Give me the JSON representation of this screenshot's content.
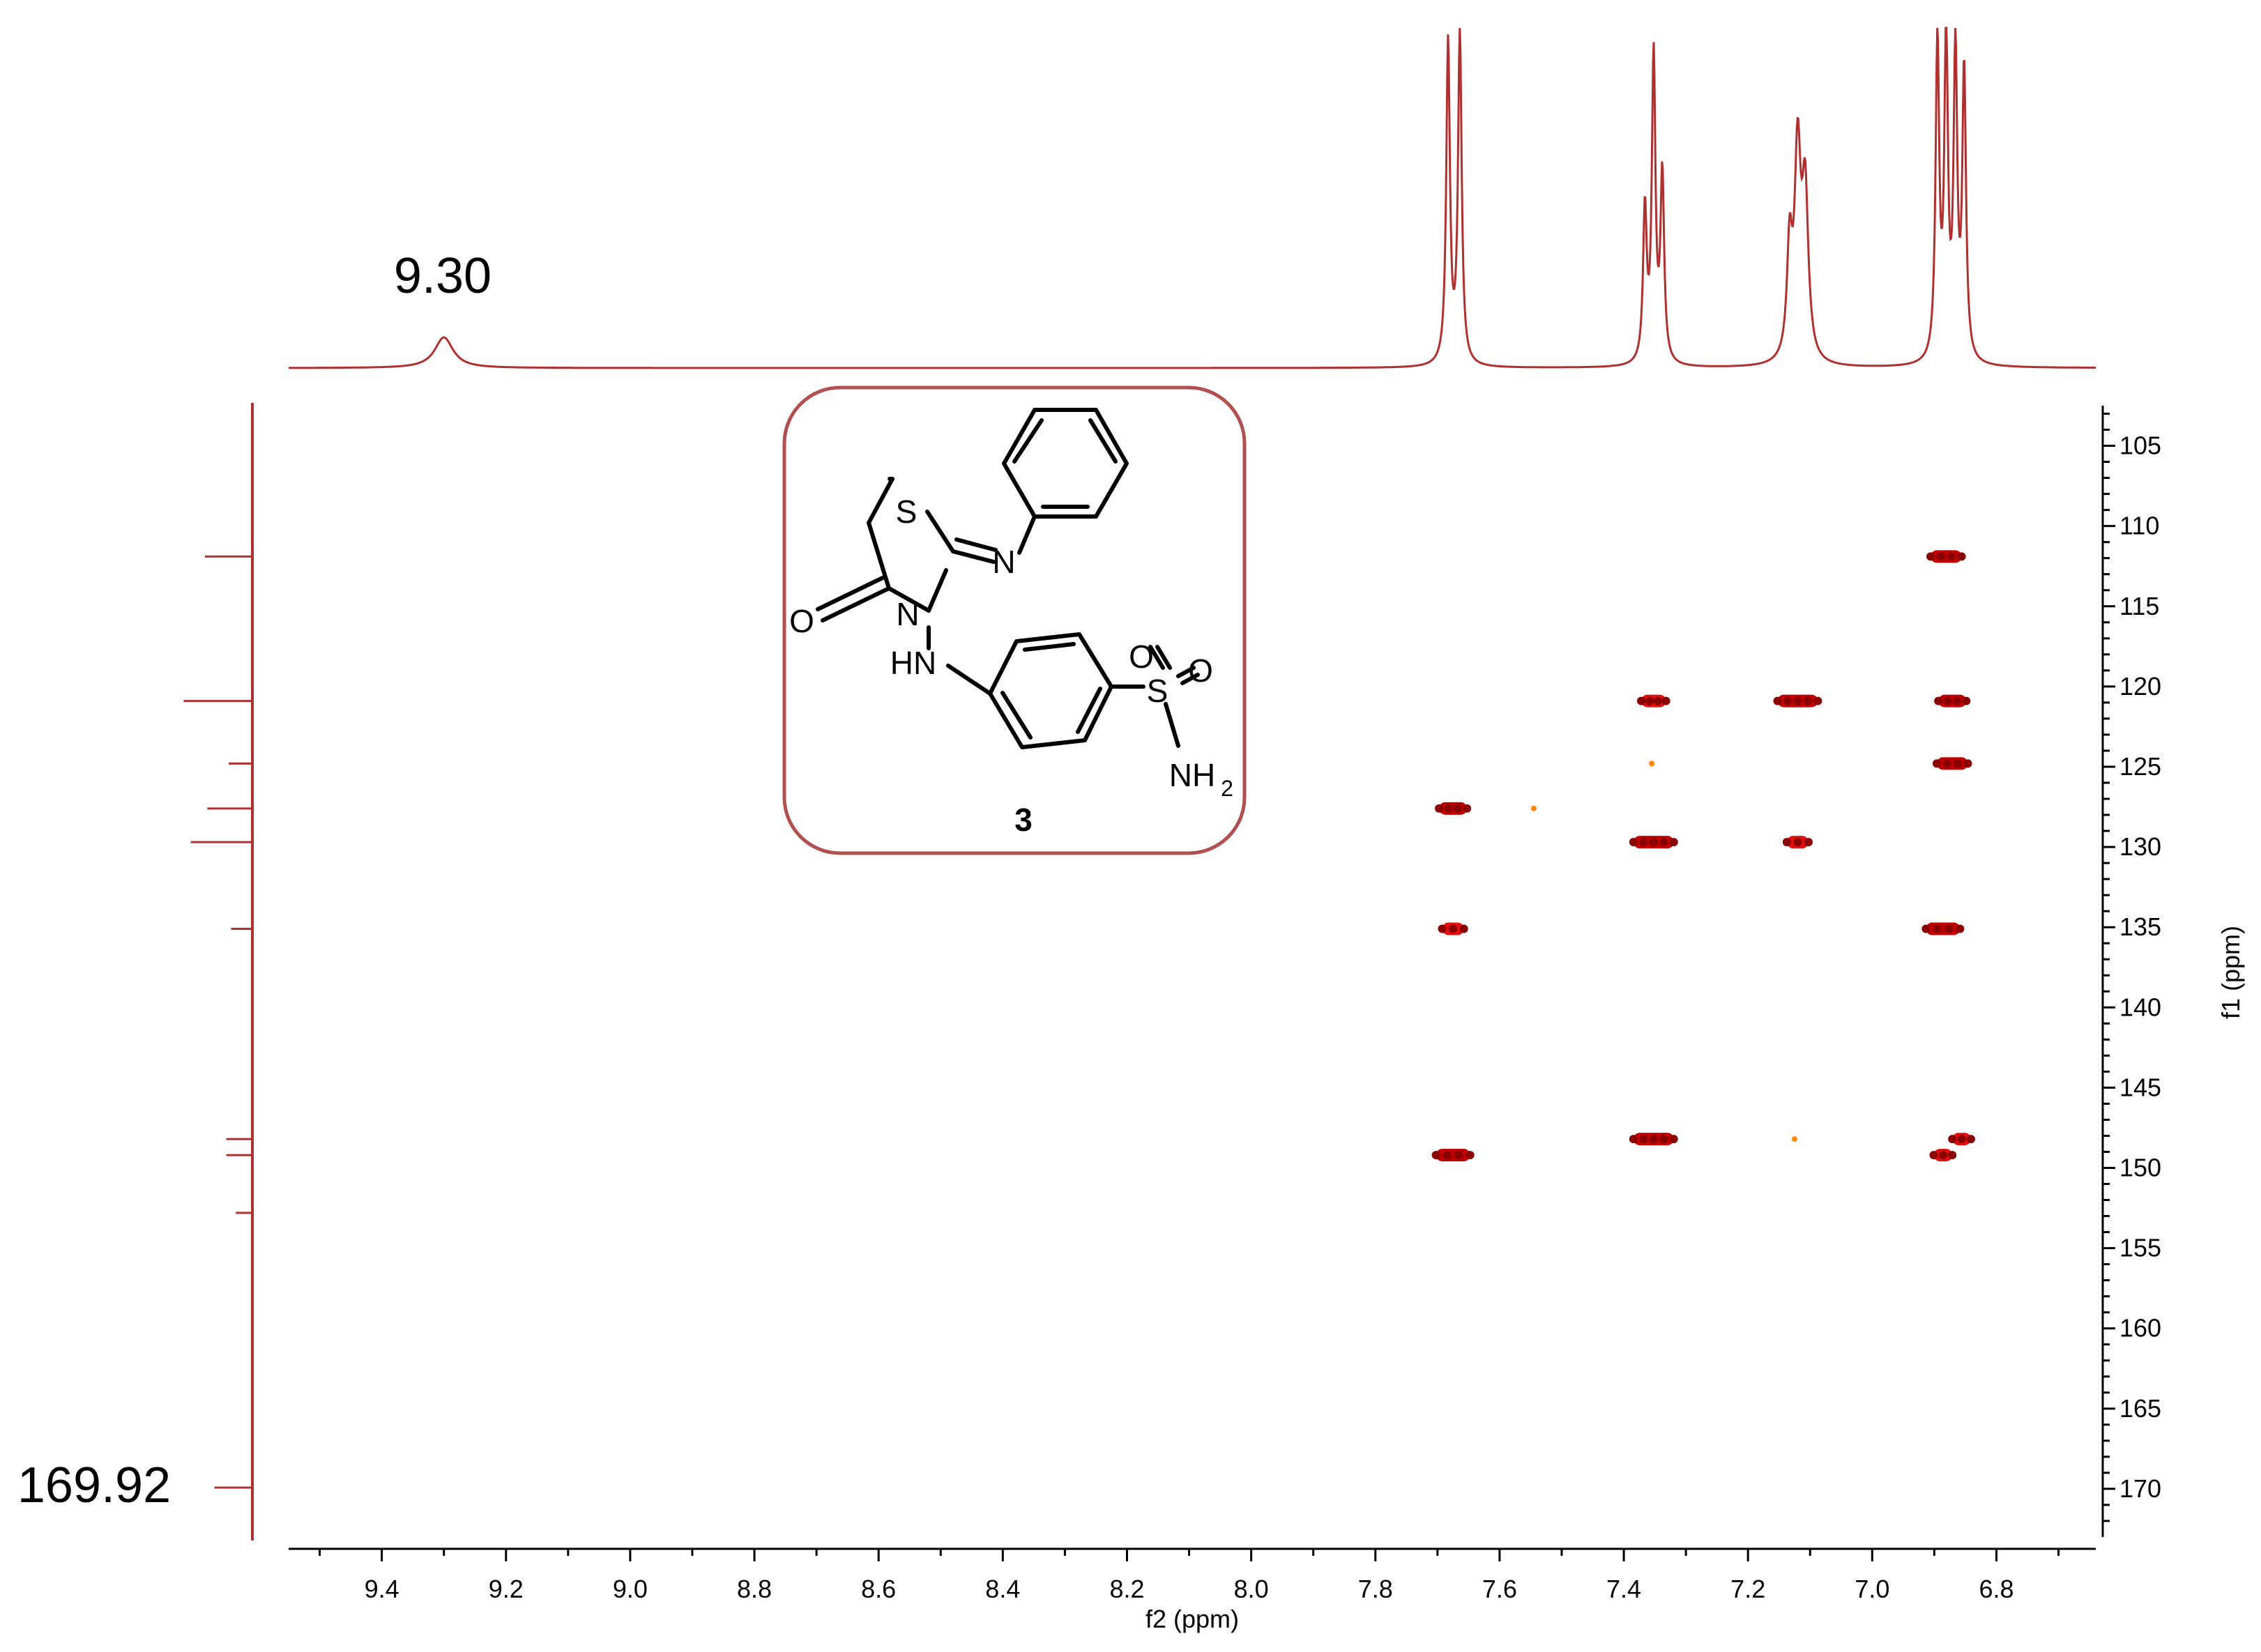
{
  "chart_data": {
    "type": "scatter",
    "subtype": "2D NMR (HMBC) contour plot with 1D projections",
    "xlabel": "f2 (ppm)",
    "ylabel": "f1 (ppm)",
    "xlim": [
      9.55,
      6.64
    ],
    "ylim": [
      102.5,
      173
    ],
    "x_ticks": [
      "9.4",
      "9.2",
      "9.0",
      "8.8",
      "8.6",
      "8.4",
      "8.2",
      "8.0",
      "7.8",
      "7.6",
      "7.4",
      "7.2",
      "7.0",
      "6.8"
    ],
    "y_ticks": [
      "105",
      "110",
      "115",
      "120",
      "125",
      "130",
      "135",
      "140",
      "145",
      "150",
      "155",
      "160",
      "165",
      "170"
    ],
    "top_projection": {
      "annotation": "9.30",
      "peaks": [
        {
          "x": 9.3,
          "h": 0.09,
          "w": 0.018
        },
        {
          "x": 7.683,
          "h": 0.95,
          "w": 0.0035
        },
        {
          "x": 7.664,
          "h": 0.98,
          "w": 0.0035
        },
        {
          "x": 7.366,
          "h": 0.45,
          "w": 0.0035
        },
        {
          "x": 7.352,
          "h": 0.9,
          "w": 0.0035
        },
        {
          "x": 7.338,
          "h": 0.55,
          "w": 0.0035
        },
        {
          "x": 7.133,
          "h": 0.32,
          "w": 0.005
        },
        {
          "x": 7.12,
          "h": 0.6,
          "w": 0.006
        },
        {
          "x": 7.108,
          "h": 0.48,
          "w": 0.006
        },
        {
          "x": 6.895,
          "h": 0.94,
          "w": 0.0035
        },
        {
          "x": 6.881,
          "h": 0.94,
          "w": 0.0035
        },
        {
          "x": 6.866,
          "h": 0.9,
          "w": 0.0035
        },
        {
          "x": 6.852,
          "h": 0.85,
          "w": 0.0035
        }
      ]
    },
    "left_projection": {
      "annotation": "169.92",
      "lines": [
        {
          "y": 111.9,
          "len": 1.0
        },
        {
          "y": 120.9,
          "len": 1.45
        },
        {
          "y": 124.8,
          "len": 0.5
        },
        {
          "y": 127.6,
          "len": 0.95
        },
        {
          "y": 129.7,
          "len": 1.3
        },
        {
          "y": 135.1,
          "len": 0.45
        },
        {
          "y": 148.2,
          "len": 0.55
        },
        {
          "y": 149.2,
          "len": 0.55
        },
        {
          "y": 152.8,
          "len": 0.35
        },
        {
          "y": 169.92,
          "len": 0.8
        }
      ]
    },
    "cross_peaks": [
      {
        "x": 6.881,
        "y": 111.9,
        "intensity": "strong",
        "width": 0.05
      },
      {
        "x": 7.352,
        "y": 120.9,
        "intensity": "medium",
        "width": 0.04
      },
      {
        "x": 7.12,
        "y": 120.9,
        "intensity": "strong",
        "width": 0.065
      },
      {
        "x": 6.871,
        "y": 120.9,
        "intensity": "strong",
        "width": 0.045
      },
      {
        "x": 7.355,
        "y": 124.8,
        "intensity": "weak",
        "width": 0.008
      },
      {
        "x": 6.871,
        "y": 124.8,
        "intensity": "strong",
        "width": 0.05
      },
      {
        "x": 7.675,
        "y": 127.6,
        "intensity": "strong",
        "width": 0.045
      },
      {
        "x": 7.545,
        "y": 127.6,
        "intensity": "weak",
        "width": 0.008
      },
      {
        "x": 7.352,
        "y": 129.7,
        "intensity": "strong",
        "width": 0.065
      },
      {
        "x": 7.12,
        "y": 129.7,
        "intensity": "medium",
        "width": 0.035
      },
      {
        "x": 7.675,
        "y": 135.1,
        "intensity": "medium",
        "width": 0.035
      },
      {
        "x": 6.886,
        "y": 135.1,
        "intensity": "strong",
        "width": 0.055
      },
      {
        "x": 7.352,
        "y": 148.2,
        "intensity": "strong",
        "width": 0.065
      },
      {
        "x": 7.125,
        "y": 148.2,
        "intensity": "weak",
        "width": 0.01
      },
      {
        "x": 6.856,
        "y": 148.2,
        "intensity": "medium",
        "width": 0.03
      },
      {
        "x": 7.675,
        "y": 149.2,
        "intensity": "strong",
        "width": 0.055
      },
      {
        "x": 6.886,
        "y": 149.2,
        "intensity": "medium",
        "width": 0.03
      }
    ],
    "inset": {
      "type": "chemical structure",
      "compound_label": "3",
      "atoms": [
        "S",
        "N",
        "O",
        "N",
        "HN",
        "S",
        "O",
        "O",
        "NH",
        "2"
      ]
    },
    "colors": {
      "spectrum": "#b03030",
      "cross_peak_strong": "#c00000",
      "cross_peak_medium": "#e01010",
      "cross_peak_weak": "#ff8a00",
      "inset_border": "#b05050"
    }
  }
}
